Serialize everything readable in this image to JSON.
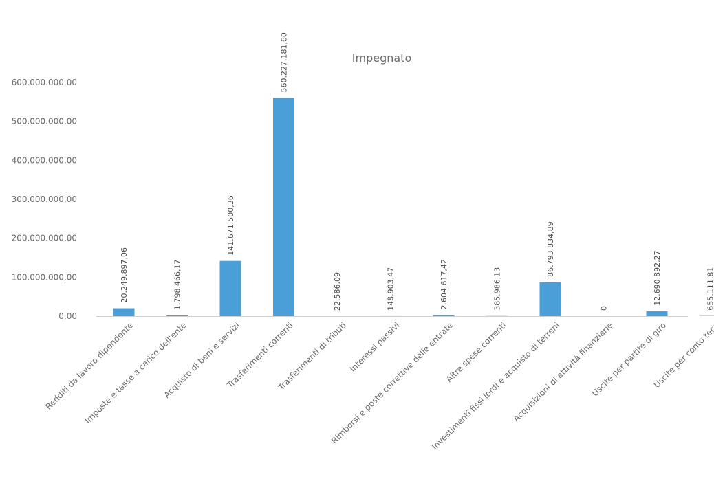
{
  "chart_data": {
    "type": "bar",
    "title": "Impegnato",
    "xlabel": "",
    "ylabel": "",
    "ylim": [
      0,
      600000000
    ],
    "yticks": [
      0,
      100000000,
      200000000,
      300000000,
      400000000,
      500000000,
      600000000
    ],
    "ytick_labels": [
      "0,00",
      "100.000.000,00",
      "200.000.000,00",
      "300.000.000,00",
      "400.000.000,00",
      "500.000.000,00",
      "600.000.000,00"
    ],
    "grid": false,
    "legend": "none",
    "bar_color": "#4a9fd8",
    "categories": [
      "Redditi da lavoro dipendente",
      "Imposte e tasse a carico dell'ente",
      "Acquisto di beni e servizi",
      "Trasferimenti correnti",
      "Trasferimenti di tributi",
      "Interessi passivi",
      "Rimborsi e poste correttive delle entrate",
      "Altre spese correnti",
      "Investimenti fissi lordi e acquisto di terreni",
      "Acquisizioni di attività finanziarie",
      "Uscite per partite di giro",
      "Uscite per conto terzi"
    ],
    "values": [
      20249897.06,
      1798466.17,
      141671500.36,
      560227181.6,
      22586.09,
      148903.47,
      2604617.42,
      385986.13,
      86793834.89,
      0,
      12690892.27,
      655111.81
    ],
    "data_labels": [
      "20.249.897,06",
      "1.798.466,17",
      "141.671.500,36",
      "560.227.181,60",
      "22.586,09",
      "148.903,47",
      "2.604.617,42",
      "385.986,13",
      "86.793.834,89",
      "0",
      "12.690.892,27",
      "655.111,81"
    ]
  }
}
